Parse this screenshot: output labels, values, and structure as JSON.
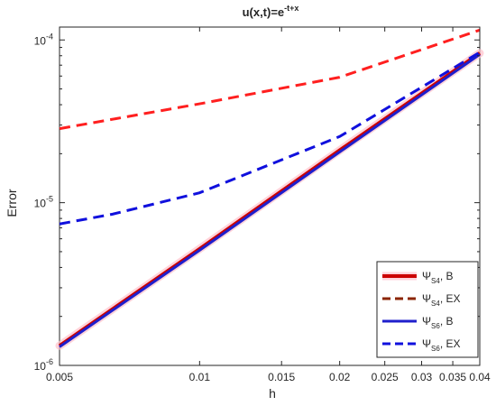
{
  "chart_data": {
    "type": "line",
    "title": "u(x,t)=e",
    "title_superscript": "-t+x",
    "xlabel": "h",
    "ylabel": "Error",
    "x_scale": "log",
    "y_scale": "log",
    "xlim": [
      0.005,
      0.04
    ],
    "ylim": [
      1e-06,
      0.00012
    ],
    "x_ticks": [
      {
        "value": 0.005,
        "label": "0.005"
      },
      {
        "value": 0.01,
        "label": "0.01"
      },
      {
        "value": 0.015,
        "label": "0.015"
      },
      {
        "value": 0.02,
        "label": "0.02"
      },
      {
        "value": 0.025,
        "label": "0.025"
      },
      {
        "value": 0.03,
        "label": "0.03"
      },
      {
        "value": 0.035,
        "label": "0.035"
      },
      {
        "value": 0.04,
        "label": "0.04"
      }
    ],
    "y_ticks": [
      {
        "value": 1e-06,
        "base": "10",
        "exp": "-6"
      },
      {
        "value": 1e-05,
        "base": "10",
        "exp": "-5"
      },
      {
        "value": 0.0001,
        "base": "10",
        "exp": "-4"
      }
    ],
    "grid": false,
    "legend_position": "bottom-right",
    "series": [
      {
        "legend_main": "Ψ",
        "legend_sub": "S4",
        "legend_suffix": ", B",
        "color": "#cc0000",
        "style": "solid",
        "width": 4,
        "halo": "#ffc0cb",
        "x": [
          0.005,
          0.01,
          0.02,
          0.04
        ],
        "y": [
          1.32e-06,
          5.2e-06,
          2.1e-05,
          8.3e-05
        ]
      },
      {
        "legend_main": "Ψ",
        "legend_sub": "S4",
        "legend_suffix": ", EX",
        "color": "#ff1f1f",
        "style": "dashed",
        "width": 3,
        "legend_color": "#8b2500",
        "x": [
          0.005,
          0.01,
          0.02,
          0.04
        ],
        "y": [
          2.85e-05,
          4.05e-05,
          5.9e-05,
          0.000115
        ]
      },
      {
        "legend_main": "Ψ",
        "legend_sub": "S6",
        "legend_suffix": ", B",
        "color": "#1f1fcc",
        "style": "solid",
        "width": 3,
        "x": [
          0.005,
          0.01,
          0.02,
          0.04
        ],
        "y": [
          1.3e-06,
          5.1e-06,
          2.05e-05,
          8.15e-05
        ]
      },
      {
        "legend_main": "Ψ",
        "legend_sub": "S6",
        "legend_suffix": ", EX",
        "color": "#1010dd",
        "style": "dashed",
        "width": 3,
        "x": [
          0.005,
          0.0065,
          0.01,
          0.02,
          0.04
        ],
        "y": [
          7.4e-06,
          8.5e-06,
          1.15e-05,
          2.55e-05,
          8.4e-05
        ]
      }
    ]
  }
}
